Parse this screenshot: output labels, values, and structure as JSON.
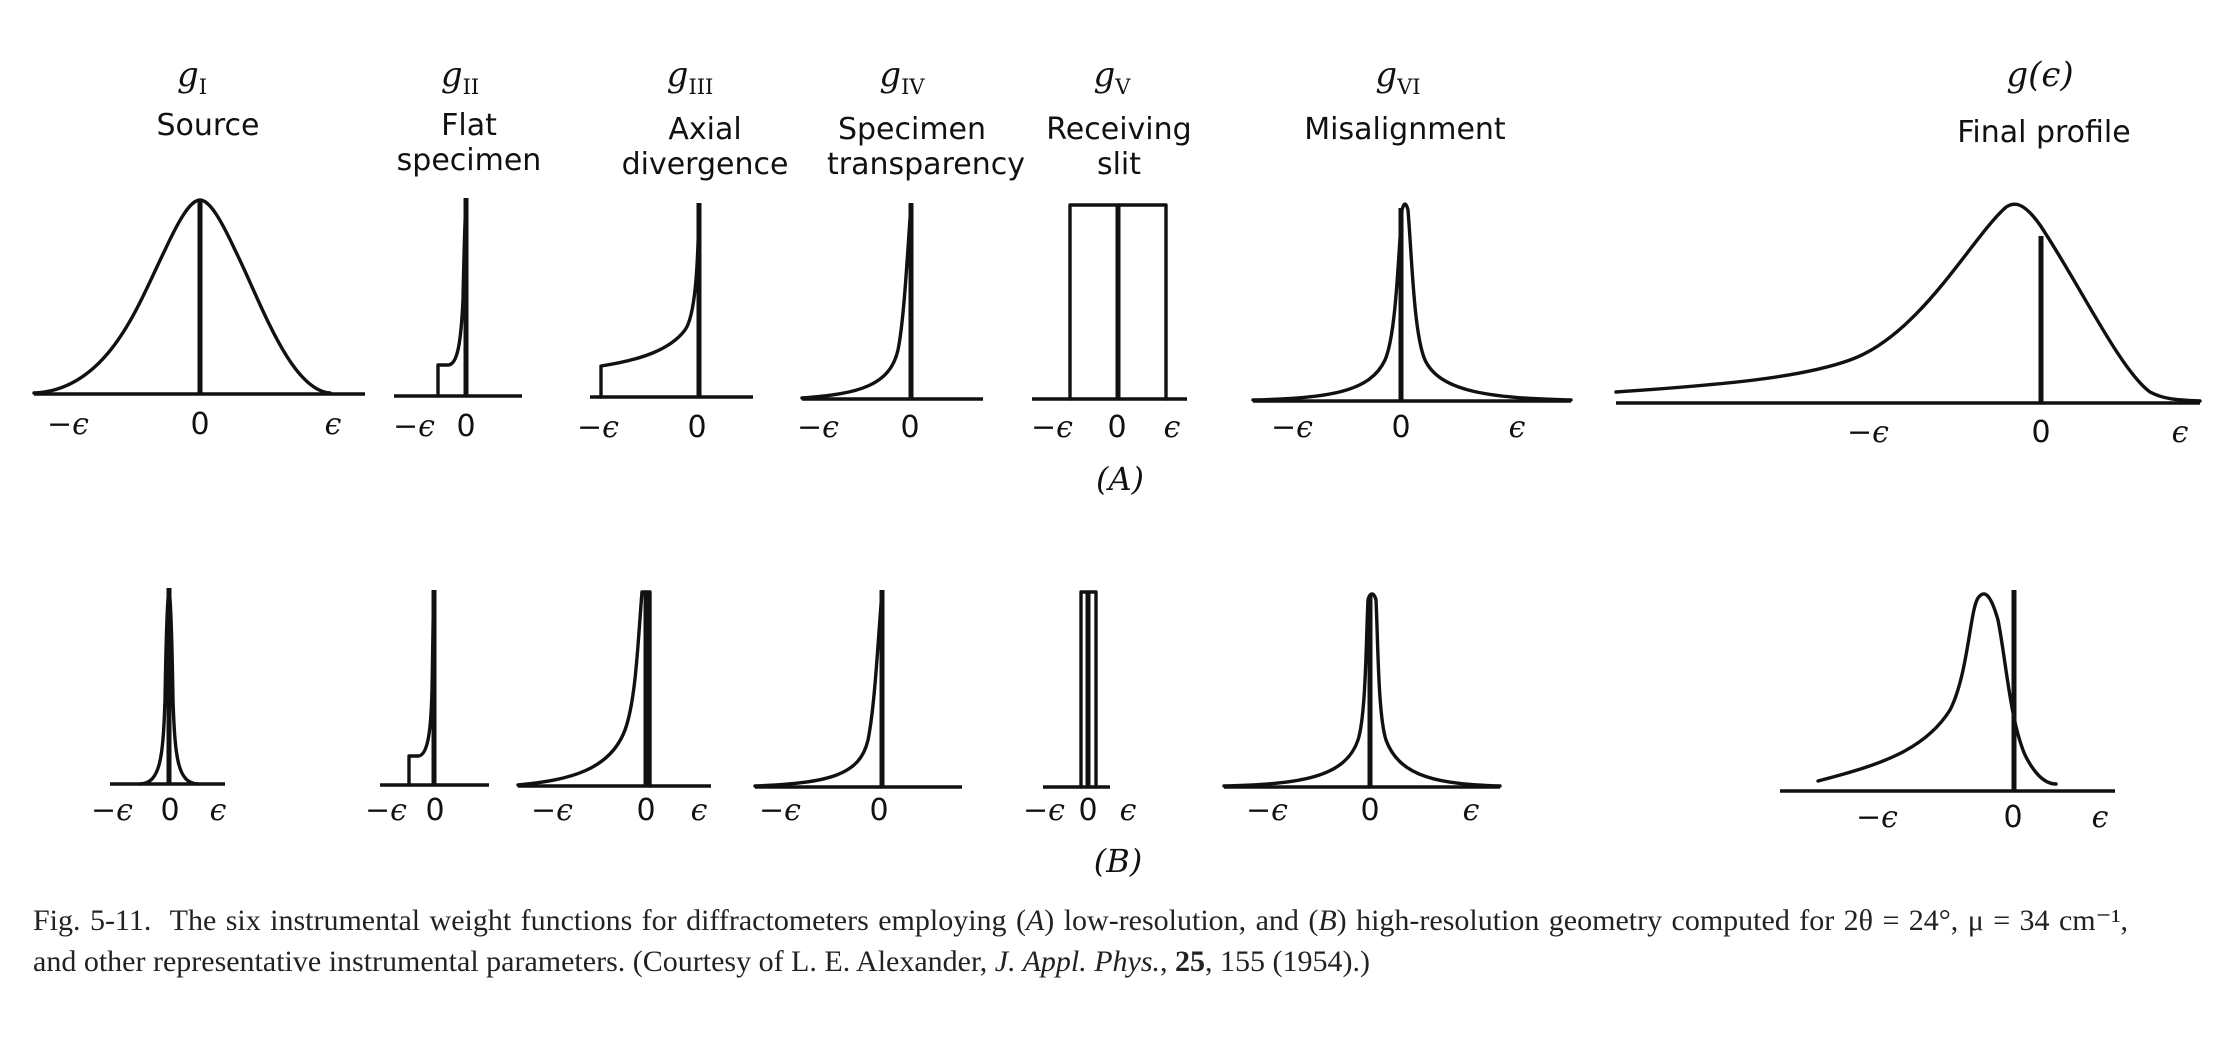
{
  "panels": {
    "A": "(A)",
    "B": "(B)"
  },
  "functions": [
    {
      "symbol": "g",
      "sub": "I",
      "title": [
        "Source"
      ]
    },
    {
      "symbol": "g",
      "sub": "II",
      "title": [
        "Flat",
        "specimen"
      ]
    },
    {
      "symbol": "g",
      "sub": "III",
      "title": [
        "Axial",
        "divergence"
      ]
    },
    {
      "symbol": "g",
      "sub": "IV",
      "title": [
        "Specimen",
        "transparency"
      ]
    },
    {
      "symbol": "g",
      "sub": "V",
      "title": [
        "Receiving",
        "slit"
      ]
    },
    {
      "symbol": "g",
      "sub": "VI",
      "title": [
        "Misalignment"
      ]
    },
    {
      "symbol": "g(ϵ)",
      "sub": "",
      "title": [
        "Final profile"
      ]
    }
  ],
  "ticks": {
    "neg": "−ϵ",
    "zero": "0",
    "pos": "ϵ"
  },
  "caption": {
    "fig_label": "Fig. 5-11.",
    "p1": "The six instrumental weight functions for diffractometers employing (",
    "A": "A",
    "p2": ") low-resolution, and (",
    "B": "B",
    "p3": ") high-resolution geometry computed for 2θ = 24°, μ = 34 cm⁻¹, and other representative instrumental parameters. (Courtesy of L. E. Alexander, ",
    "journal": "J. Appl. Phys.",
    "p4": ", ",
    "volume": "25",
    "p5": ", 155 (1954).)"
  }
}
